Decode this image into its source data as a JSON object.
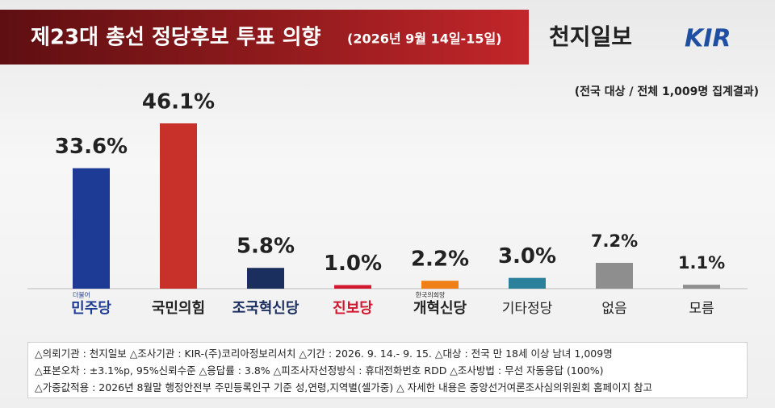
{
  "chart_data": {
    "type": "bar",
    "title": "제23대 총선 정당후보 투표 의향",
    "subtitle": "(2026년 9월 14일-15일)",
    "brand": "천지일보",
    "logo": "KIR",
    "note": "(전국 대상 / 전체 1,009명 집계결과)",
    "categories": [
      "민주당",
      "국민의힘",
      "조국혁신당",
      "진보당",
      "개혁신당",
      "기타정당",
      "없음",
      "모름"
    ],
    "category_sublabels": [
      "더불어",
      null,
      null,
      null,
      "한국의희망",
      null,
      null,
      null
    ],
    "values": [
      33.6,
      46.1,
      5.8,
      1.0,
      2.2,
      3.0,
      7.2,
      1.1
    ],
    "value_labels": [
      "33.6%",
      "46.1%",
      "5.8%",
      "1.0%",
      "2.2%",
      "3.0%",
      "7.2%",
      "1.1%"
    ],
    "colors": [
      "#1d3a94",
      "#c8312a",
      "#1b2f5e",
      "#d3172e",
      "#f07f16",
      "#2b819c",
      "#8e8e8e",
      "#8e8e8e"
    ],
    "label_colors": [
      "#1d3a94",
      "#222222",
      "#1b2f5e",
      "#d3172e",
      "#222222",
      "#222222",
      "#222222",
      "#222222"
    ],
    "footnotes": [
      "△의뢰기관 : 천지일보   △조사기관 : KIR-(주)코리아정보리서치   △기간 : 2026. 9. 14.- 9. 15.  △대상 : 전국 만 18세 이상 남녀 1,009명",
      "△표본오차 : ±3.1%p, 95%신뢰수준  △응답률 : 3.8%  △피조사자선정방식 : 휴대전화번호 RDD   △조사방법 : 무선 자동응답 (100%)",
      "△가중값적용 : 2026년 8월말 행정안전부 주민등록인구 기준 성,연령,지역별(셀가중)  △ 자세한 내용은 중앙선거여론조사심의위원회 홈페이지 참고"
    ]
  }
}
